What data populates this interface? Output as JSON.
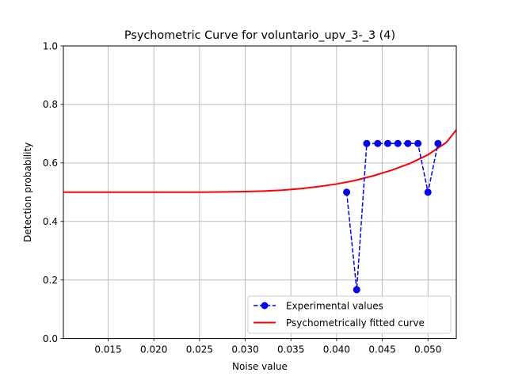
{
  "chart_data": {
    "type": "line",
    "title": "Psychometric Curve for voluntario_upv_3-_3 (4)",
    "xlabel": "Noise value",
    "ylabel": "Detection probability",
    "xlim": [
      0.0101,
      0.0531
    ],
    "ylim": [
      0.0,
      1.0
    ],
    "xticks": [
      0.015,
      0.02,
      0.025,
      0.03,
      0.035,
      0.04,
      0.045,
      0.05
    ],
    "xtick_labels": [
      "0.015",
      "0.020",
      "0.025",
      "0.030",
      "0.035",
      "0.040",
      "0.045",
      "0.050"
    ],
    "yticks": [
      0.0,
      0.2,
      0.4,
      0.6,
      0.8,
      1.0
    ],
    "ytick_labels": [
      "0.0",
      "0.2",
      "0.4",
      "0.6",
      "0.8",
      "1.0"
    ],
    "grid": true,
    "legend_position": "lower-right",
    "series": [
      {
        "name": "Experimental values",
        "style": "dashed-markers",
        "color": "#0000ff",
        "x": [
          0.0411,
          0.0422,
          0.0433,
          0.0445,
          0.0456,
          0.0467,
          0.0478,
          0.0489,
          0.05,
          0.0511
        ],
        "y": [
          0.5,
          0.1667,
          0.6667,
          0.6667,
          0.6667,
          0.6667,
          0.6667,
          0.6667,
          0.5,
          0.6667
        ]
      },
      {
        "name": "Psychometrically fitted curve",
        "style": "solid",
        "color": "#ff0000",
        "x": [
          0.0101,
          0.015,
          0.02,
          0.025,
          0.028,
          0.03,
          0.032,
          0.034,
          0.036,
          0.038,
          0.04,
          0.042,
          0.044,
          0.046,
          0.048,
          0.05,
          0.052,
          0.0531
        ],
        "y": [
          0.5,
          0.5,
          0.5,
          0.5,
          0.501,
          0.502,
          0.504,
          0.507,
          0.512,
          0.519,
          0.528,
          0.54,
          0.556,
          0.575,
          0.598,
          0.628,
          0.67,
          0.713
        ]
      }
    ]
  }
}
